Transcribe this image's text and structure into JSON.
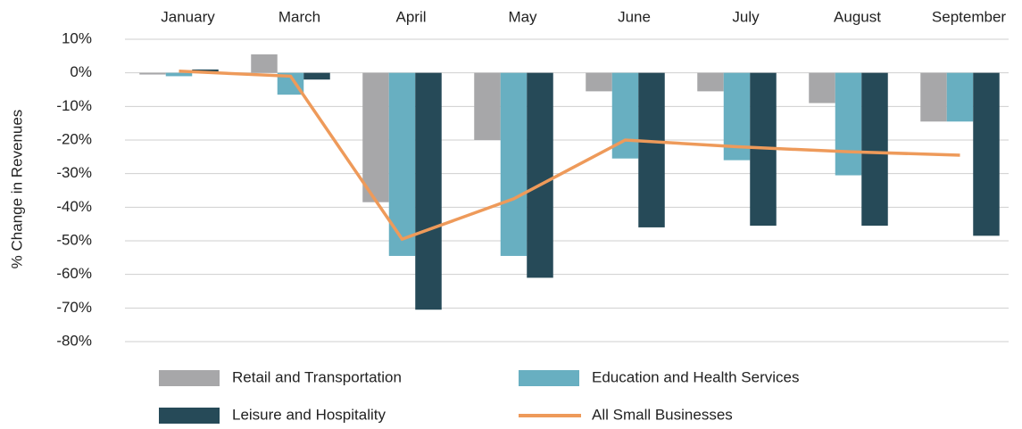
{
  "chart_data": {
    "type": "bar_line",
    "ylabel": "% Change in Revenues",
    "categories": [
      "January",
      "March",
      "April",
      "May",
      "June",
      "July",
      "August",
      "September"
    ],
    "series": [
      {
        "name": "Retail and Transportation",
        "type": "bar",
        "color": "#a7a7a9",
        "values": [
          -0.5,
          5.5,
          -38.5,
          -20,
          -5.5,
          -5.5,
          -9,
          -14.5
        ]
      },
      {
        "name": "Education and Health Services",
        "type": "bar",
        "color": "#68afc1",
        "values": [
          -1,
          -6.5,
          -54.5,
          -54.5,
          -25.5,
          -26,
          -30.5,
          -14.5
        ]
      },
      {
        "name": "Leisure and Hospitality",
        "type": "bar",
        "color": "#264a58",
        "values": [
          1,
          -2,
          -70.5,
          -61,
          -46,
          -45.5,
          -45.5,
          -48.5
        ]
      },
      {
        "name": "All Small Businesses",
        "type": "line",
        "color": "#ee9a5a",
        "values": [
          0.5,
          -1,
          -49.5,
          -37.5,
          -20,
          -22,
          -23.5,
          -24.5
        ]
      }
    ],
    "ylim": [
      -80,
      10
    ],
    "yticks": [
      {
        "value": 10,
        "label": "10%"
      },
      {
        "value": 0,
        "label": "0%"
      },
      {
        "value": -10,
        "label": "-10%"
      },
      {
        "value": -20,
        "label": "-20%"
      },
      {
        "value": -30,
        "label": "-30%"
      },
      {
        "value": -40,
        "label": "-40%"
      },
      {
        "value": -50,
        "label": "-50%"
      },
      {
        "value": -60,
        "label": "-60%"
      },
      {
        "value": -70,
        "label": "-70%"
      },
      {
        "value": -80,
        "label": "-80%"
      }
    ],
    "grid": true,
    "legend": "bottom"
  }
}
